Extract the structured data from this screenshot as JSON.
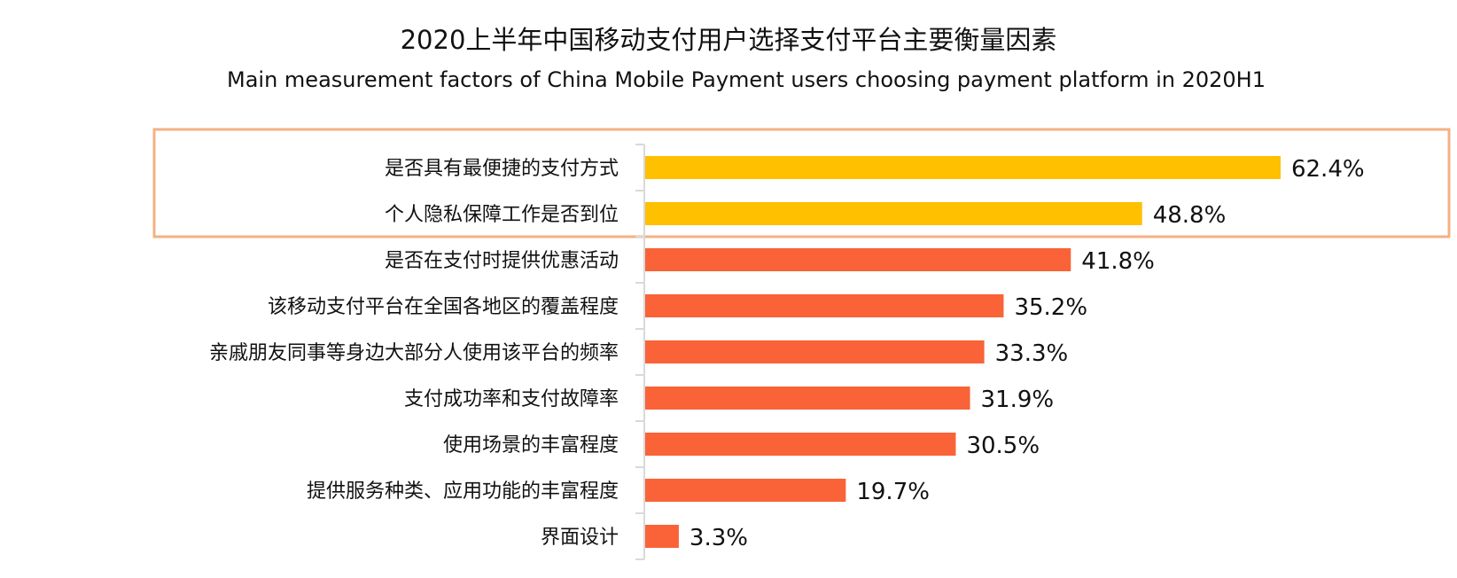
{
  "chart_data": {
    "type": "bar",
    "orientation": "horizontal",
    "title": "2020上半年中国移动支付用户选择支付平台主要衡量因素",
    "subtitle": "Main measurement factors of China Mobile Payment users choosing payment platform in 2020H1",
    "categories": [
      "是否具有最便捷的支付方式",
      "个人隐私保障工作是否到位",
      "是否在支付时提供优惠活动",
      "该移动支付平台在全国各地区的覆盖程度",
      "亲戚朋友同事等身边大部分人使用该平台的频率",
      "支付成功率和支付故障率",
      "使用场景的丰富程度",
      "提供服务种类、应用功能的丰富程度",
      "界面设计"
    ],
    "values": [
      62.4,
      48.8,
      41.8,
      35.2,
      33.3,
      31.9,
      30.5,
      19.7,
      3.3
    ],
    "value_labels": [
      "62.4%",
      "48.8%",
      "41.8%",
      "35.2%",
      "33.3%",
      "31.9%",
      "30.5%",
      "19.7%",
      "3.3%"
    ],
    "xlim": [
      0,
      65
    ],
    "grid": false,
    "highlighted_count": 2,
    "colors": {
      "highlight": "#FFC000",
      "default": "#F96337",
      "highlight_box": "#F4B183",
      "axis": "#D9D9D9"
    }
  }
}
